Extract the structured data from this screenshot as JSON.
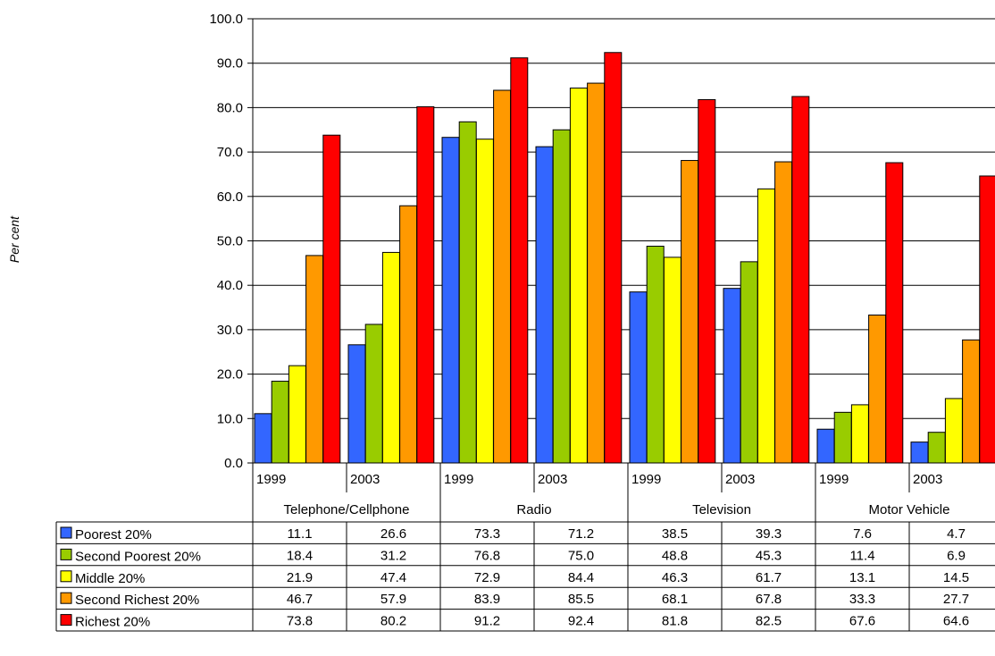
{
  "chart_data": {
    "type": "bar",
    "ylabel": "Per cent",
    "ylim": [
      0,
      100
    ],
    "yticks": [
      "0.0",
      "10.0",
      "20.0",
      "30.0",
      "40.0",
      "50.0",
      "60.0",
      "70.0",
      "80.0",
      "90.0",
      "100.0"
    ],
    "grid": true,
    "legend": "table-left",
    "groups": [
      {
        "label": "Telephone/Cellphone",
        "years": [
          "1999",
          "2003"
        ]
      },
      {
        "label": "Radio",
        "years": [
          "1999",
          "2003"
        ]
      },
      {
        "label": "Television",
        "years": [
          "1999",
          "2003"
        ]
      },
      {
        "label": "Motor Vehicle",
        "years": [
          "1999",
          "2003"
        ]
      }
    ],
    "categories": [
      "1999",
      "2003",
      "1999",
      "2003",
      "1999",
      "2003",
      "1999",
      "2003"
    ],
    "series": [
      {
        "name": "Poorest 20%",
        "color": "#3366ff",
        "values": [
          11.1,
          26.6,
          73.3,
          71.2,
          38.5,
          39.3,
          7.6,
          4.7
        ],
        "labels": [
          "11.1",
          "26.6",
          "73.3",
          "71.2",
          "38.5",
          "39.3",
          "7.6",
          "4.7"
        ]
      },
      {
        "name": "Second Poorest 20%",
        "color": "#99cc00",
        "values": [
          18.4,
          31.2,
          76.8,
          75.0,
          48.8,
          45.3,
          11.4,
          6.9
        ],
        "labels": [
          "18.4",
          "31.2",
          "76.8",
          "75.0",
          "48.8",
          "45.3",
          "11.4",
          "6.9"
        ]
      },
      {
        "name": "Middle 20%",
        "color": "#ffff00",
        "values": [
          21.9,
          47.4,
          72.9,
          84.4,
          46.3,
          61.7,
          13.1,
          14.5
        ],
        "labels": [
          "21.9",
          "47.4",
          "72.9",
          "84.4",
          "46.3",
          "61.7",
          "13.1",
          "14.5"
        ]
      },
      {
        "name": "Second Richest 20%",
        "color": "#ff9900",
        "values": [
          46.7,
          57.9,
          83.9,
          85.5,
          68.1,
          67.8,
          33.3,
          27.7
        ],
        "labels": [
          "46.7",
          "57.9",
          "83.9",
          "85.5",
          "68.1",
          "67.8",
          "33.3",
          "27.7"
        ]
      },
      {
        "name": "Richest 20%",
        "color": "#ff0000",
        "values": [
          73.8,
          80.2,
          91.2,
          92.4,
          81.8,
          82.5,
          67.6,
          64.6
        ],
        "labels": [
          "73.8",
          "80.2",
          "91.2",
          "92.4",
          "81.8",
          "82.5",
          "67.6",
          "64.6"
        ]
      }
    ]
  }
}
